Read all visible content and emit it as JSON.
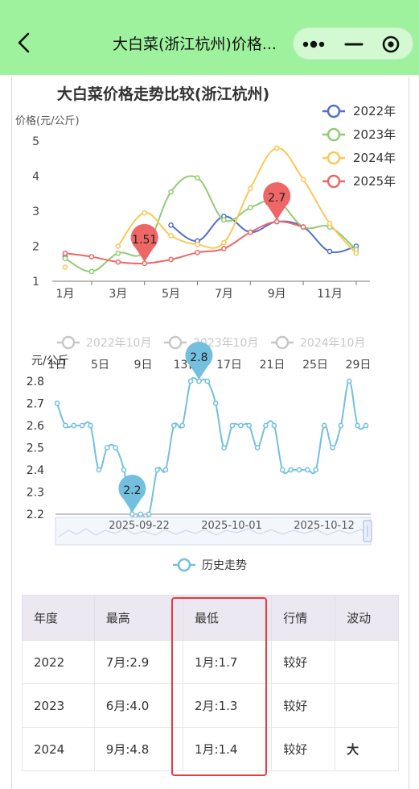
{
  "navbar": {
    "title": "大白菜(浙江杭州)价格...",
    "back_icon": "chevron-left-icon",
    "menu_icon": "more-dots-icon",
    "minimize_icon": "minus-icon",
    "close_icon": "target-circle-icon",
    "background": "#9ef29e"
  },
  "chart_data": [
    {
      "type": "line",
      "title": "大白菜价格走势比较(浙江杭州)",
      "ylabel": "价格(元/公斤)",
      "xlabel": "",
      "categories": [
        "1月",
        "2月",
        "3月",
        "4月",
        "5月",
        "6月",
        "7月",
        "8月",
        "9月",
        "10月",
        "11月",
        "12月"
      ],
      "xtick_labels": [
        "1月",
        "3月",
        "5月",
        "7月",
        "9月",
        "11月"
      ],
      "ylim": [
        1,
        5
      ],
      "yticks": [
        "1",
        "2",
        "3",
        "4",
        "5"
      ],
      "grid": false,
      "legend": "top-right",
      "series": [
        {
          "name": "2022年",
          "color": "#5470c6",
          "values": [
            1.7,
            null,
            null,
            null,
            2.6,
            2.15,
            2.85,
            2.4,
            2.7,
            2.55,
            1.85,
            2.0
          ]
        },
        {
          "name": "2023年",
          "color": "#91cc75",
          "values": [
            1.65,
            1.28,
            1.8,
            1.85,
            3.55,
            3.95,
            2.75,
            3.1,
            3.3,
            2.55,
            2.55,
            1.9
          ]
        },
        {
          "name": "2024年",
          "color": "#fac858",
          "values": [
            1.4,
            null,
            2.0,
            2.95,
            2.3,
            2.05,
            2.1,
            3.65,
            4.8,
            3.9,
            2.65,
            1.8
          ]
        },
        {
          "name": "2025年",
          "color": "#ee6666",
          "values": [
            1.8,
            1.7,
            1.55,
            1.51,
            1.62,
            1.82,
            1.93,
            2.4,
            2.7,
            2.55,
            null,
            null
          ]
        }
      ],
      "markers": [
        {
          "series": "2025年",
          "category": "4月",
          "value": 1.51,
          "label": "1.51"
        },
        {
          "series": "2025年",
          "category": "9月",
          "value": 2.7,
          "label": "2.7"
        }
      ]
    },
    {
      "type": "line",
      "title": "",
      "ylabel": "元/公斤",
      "ylim": [
        2.2,
        2.8
      ],
      "yticks": [
        "2.2",
        "2.3",
        "2.4",
        "2.5",
        "2.6",
        "2.7",
        "2.8"
      ],
      "xtick_labels": [
        "1日",
        "5日",
        "9日",
        "13日",
        "17日",
        "21日",
        "25日",
        "29日"
      ],
      "legend_top": [
        "2022年10月",
        "2023年10月",
        "2024年10月"
      ],
      "legend_bottom": "历史走势",
      "color": "#73c0de",
      "values": [
        2.7,
        2.6,
        2.6,
        2.6,
        2.6,
        2.4,
        2.5,
        2.5,
        2.4,
        2.2,
        2.2,
        2.2,
        2.4,
        2.4,
        2.6,
        2.6,
        2.8,
        2.8,
        2.8,
        2.7,
        2.5,
        2.6,
        2.6,
        2.6,
        2.5,
        2.6,
        2.6,
        2.4,
        2.4,
        2.4,
        2.4,
        2.4,
        2.6,
        2.5,
        2.6,
        2.8,
        2.6,
        2.6
      ],
      "markers": [
        {
          "type": "min",
          "value": 2.2,
          "label": "2.2"
        },
        {
          "type": "max",
          "value": 2.8,
          "label": "2.8"
        }
      ],
      "datazoom": {
        "labels": [
          "2025-09-22",
          "2025-10-01",
          "2025-10-12"
        ],
        "handle_icon": "drag-handle-icon"
      }
    }
  ],
  "table": {
    "headers": [
      "年度",
      "最高",
      "最低",
      "行情",
      "波动"
    ],
    "rows": [
      {
        "year": "2022",
        "high": "7月:2.9",
        "low": "1月:1.7",
        "trend": "较好",
        "volatility": ""
      },
      {
        "year": "2023",
        "high": "6月:4.0",
        "low": "2月:1.3",
        "trend": "较好",
        "volatility": ""
      },
      {
        "year": "2024",
        "high": "9月:4.8",
        "low": "1月:1.4",
        "trend": "较好",
        "volatility": "大"
      }
    ]
  }
}
